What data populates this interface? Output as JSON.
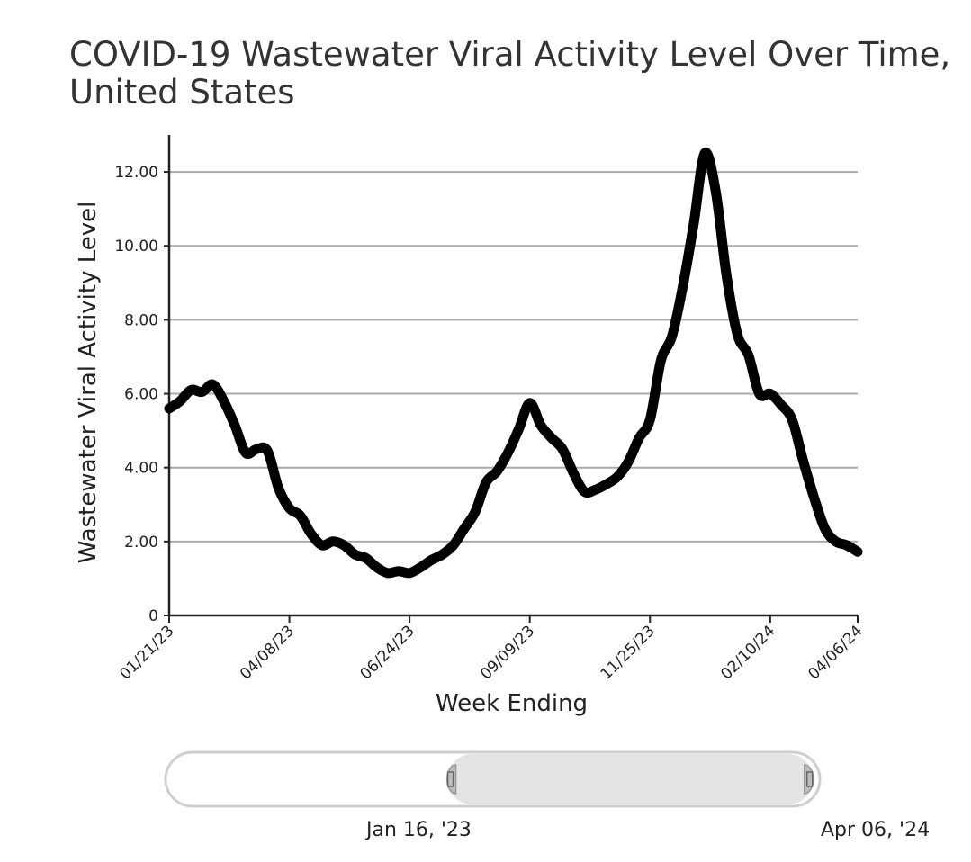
{
  "chart_data": {
    "type": "line",
    "title": "COVID-19 Wastewater Viral Activity Level Over Time, United States",
    "xlabel": "Week Ending",
    "ylabel": "Wastewater Viral Activity Level",
    "x_ticks": [
      "01/21/23",
      "04/08/23",
      "06/24/23",
      "09/09/23",
      "11/25/23",
      "02/10/24",
      "04/06/24"
    ],
    "y_ticks": [
      "0",
      "2.00",
      "4.00",
      "6.00",
      "8.00",
      "10.00",
      "12.00"
    ],
    "ylim": [
      0,
      13
    ],
    "grid": "horizontal",
    "x_start": "2023-01-21",
    "x_end": "2024-04-06",
    "series": [
      {
        "name": "",
        "color": "#000000",
        "x": [
          "2023-01-21",
          "2023-01-28",
          "2023-02-04",
          "2023-02-11",
          "2023-02-18",
          "2023-02-25",
          "2023-03-04",
          "2023-03-11",
          "2023-03-18",
          "2023-03-25",
          "2023-04-01",
          "2023-04-08",
          "2023-04-15",
          "2023-04-22",
          "2023-04-29",
          "2023-05-06",
          "2023-05-13",
          "2023-05-20",
          "2023-05-27",
          "2023-06-03",
          "2023-06-10",
          "2023-06-17",
          "2023-06-24",
          "2023-07-01",
          "2023-07-08",
          "2023-07-15",
          "2023-07-22",
          "2023-07-29",
          "2023-08-05",
          "2023-08-12",
          "2023-08-19",
          "2023-08-26",
          "2023-09-02",
          "2023-09-09",
          "2023-09-16",
          "2023-09-23",
          "2023-09-30",
          "2023-10-07",
          "2023-10-14",
          "2023-10-21",
          "2023-10-28",
          "2023-11-04",
          "2023-11-11",
          "2023-11-18",
          "2023-11-25",
          "2023-12-02",
          "2023-12-09",
          "2023-12-16",
          "2023-12-23",
          "2023-12-30",
          "2024-01-06",
          "2024-01-13",
          "2024-01-20",
          "2024-01-27",
          "2024-02-03",
          "2024-02-10",
          "2024-02-17",
          "2024-02-24",
          "2024-03-02",
          "2024-03-09",
          "2024-03-16",
          "2024-03-23",
          "2024-03-30",
          "2024-04-06"
        ],
        "values": [
          5.6,
          5.8,
          6.1,
          6.05,
          6.25,
          5.8,
          5.15,
          4.4,
          4.5,
          4.45,
          3.45,
          2.9,
          2.7,
          2.2,
          1.9,
          2.0,
          1.9,
          1.65,
          1.55,
          1.3,
          1.15,
          1.2,
          1.15,
          1.3,
          1.5,
          1.65,
          1.9,
          2.35,
          2.8,
          3.6,
          3.9,
          4.4,
          5.05,
          5.75,
          5.15,
          4.8,
          4.5,
          3.85,
          3.35,
          3.4,
          3.55,
          3.75,
          4.15,
          4.8,
          5.3,
          6.9,
          7.55,
          8.9,
          10.6,
          12.5,
          11.5,
          9.2,
          7.6,
          7.05,
          6.0,
          6.0,
          5.7,
          5.3,
          4.2,
          3.2,
          2.35,
          2.0,
          1.9,
          1.72
        ]
      }
    ]
  },
  "range_selector": {
    "start_label": "Jan 16, '23",
    "end_label": "Apr 06, '24",
    "selected_start_fraction": 0.43,
    "selected_end_fraction": 0.99
  }
}
